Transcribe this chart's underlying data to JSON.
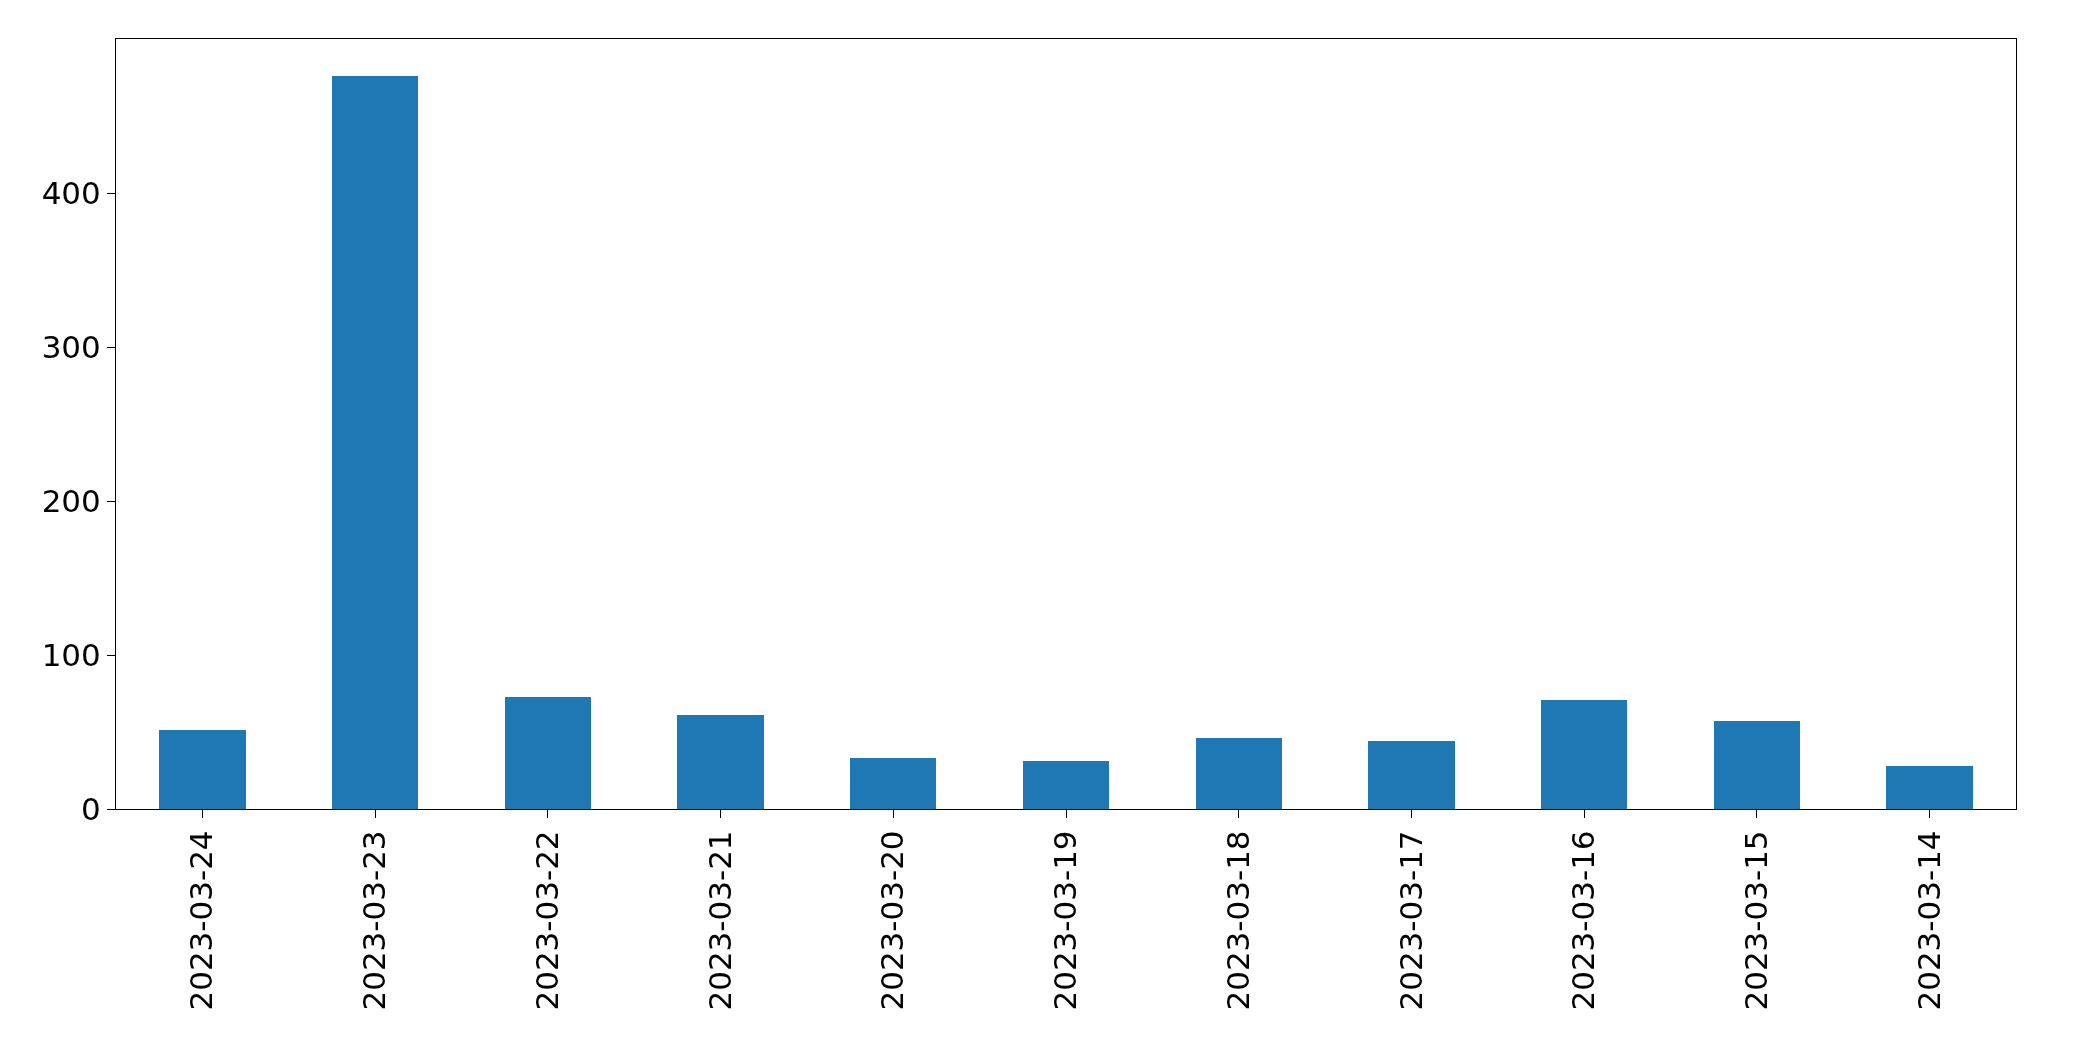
{
  "chart_data": {
    "type": "bar",
    "categories": [
      "2023-03-24",
      "2023-03-23",
      "2023-03-22",
      "2023-03-21",
      "2023-03-20",
      "2023-03-19",
      "2023-03-18",
      "2023-03-17",
      "2023-03-16",
      "2023-03-15",
      "2023-03-14"
    ],
    "values": [
      51,
      476,
      73,
      61,
      33,
      31,
      46,
      44,
      71,
      57,
      28
    ],
    "color": "#1f77b4",
    "ylim": [
      0,
      500
    ],
    "yticks": [
      0,
      100,
      200,
      300,
      400
    ]
  }
}
